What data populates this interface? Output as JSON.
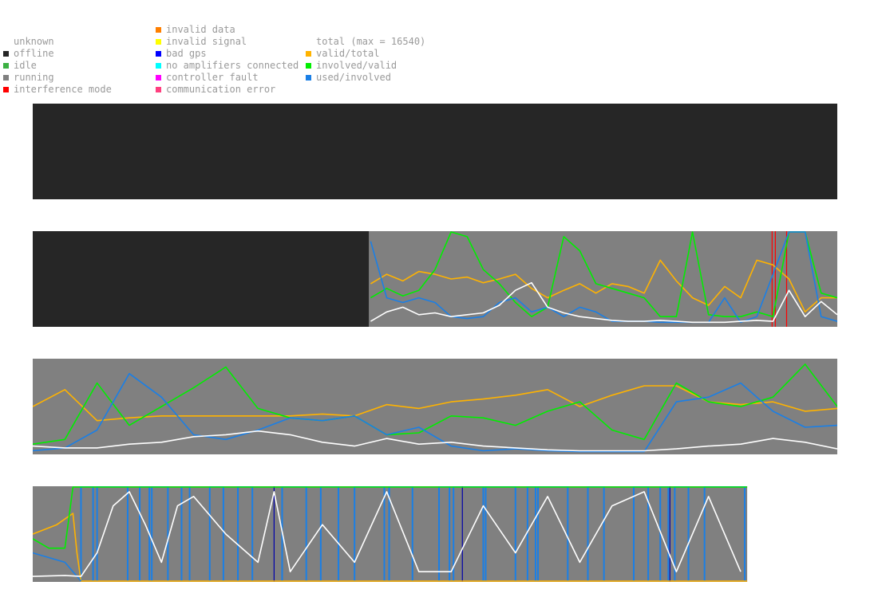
{
  "legend": {
    "col1": [
      {
        "label": "unknown",
        "color": null
      },
      {
        "label": "offline",
        "color": "#262626"
      },
      {
        "label": "idle",
        "color": "#3cb043"
      },
      {
        "label": "running",
        "color": "#808080"
      },
      {
        "label": "interference mode",
        "color": "#ff0000"
      }
    ],
    "col2": [
      {
        "label": "invalid data",
        "color": "#ff7f00"
      },
      {
        "label": "invalid signal",
        "color": "#ffff00"
      },
      {
        "label": "bad gps",
        "color": "#0000ff"
      },
      {
        "label": "no amplifiers connected",
        "color": "#00ffff"
      },
      {
        "label": "controller fault",
        "color": "#ff00ff"
      },
      {
        "label": "communication error",
        "color": "#ff3f7f"
      }
    ],
    "col3": [
      {
        "label": "total (max = 16540)",
        "color": null
      },
      {
        "label": "valid/total",
        "color": "#ffb300"
      },
      {
        "label": "involved/valid",
        "color": "#00ee00"
      },
      {
        "label": "used/involved",
        "color": "#1a7fe6"
      }
    ]
  },
  "colors": {
    "offline": "#262626",
    "running": "#808080",
    "total": "#ffffff",
    "valid_total": "#ffb300",
    "involved_valid": "#00ee00",
    "used_involved": "#1a7fe6",
    "interference": "#ff0000",
    "bad_gps": "#0000aa"
  },
  "chart_data": [
    {
      "type": "line",
      "title": "",
      "x_range": [
        0,
        1
      ],
      "ylim": [
        0,
        1
      ],
      "status_segments": [
        {
          "from": 0.0,
          "to": 1.0,
          "state": "offline"
        }
      ],
      "series": []
    },
    {
      "type": "line",
      "title": "",
      "x_range": [
        0,
        1
      ],
      "ylim": [
        0,
        1
      ],
      "status_segments": [
        {
          "from": 0.0,
          "to": 0.418,
          "state": "offline"
        },
        {
          "from": 0.418,
          "to": 1.0,
          "state": "running"
        }
      ],
      "markers": [
        {
          "x": 0.919,
          "state": "interference"
        },
        {
          "x": 0.923,
          "state": "interference"
        },
        {
          "x": 0.937,
          "state": "interference"
        }
      ],
      "series": [
        {
          "key": "total",
          "x": [
            0.42,
            0.44,
            0.46,
            0.48,
            0.5,
            0.52,
            0.54,
            0.56,
            0.58,
            0.6,
            0.62,
            0.64,
            0.66,
            0.68,
            0.7,
            0.72,
            0.74,
            0.76,
            0.78,
            0.8,
            0.82,
            0.84,
            0.86,
            0.88,
            0.9,
            0.92,
            0.94,
            0.96,
            0.98,
            1.0
          ],
          "values": [
            0.05,
            0.15,
            0.2,
            0.12,
            0.14,
            0.1,
            0.12,
            0.14,
            0.22,
            0.38,
            0.46,
            0.2,
            0.14,
            0.1,
            0.08,
            0.06,
            0.05,
            0.05,
            0.06,
            0.05,
            0.04,
            0.04,
            0.04,
            0.05,
            0.06,
            0.05,
            0.38,
            0.1,
            0.26,
            0.12
          ]
        },
        {
          "key": "valid_total",
          "x": [
            0.42,
            0.44,
            0.46,
            0.48,
            0.5,
            0.52,
            0.54,
            0.56,
            0.58,
            0.6,
            0.62,
            0.64,
            0.66,
            0.68,
            0.7,
            0.72,
            0.74,
            0.76,
            0.78,
            0.8,
            0.82,
            0.84,
            0.86,
            0.88,
            0.9,
            0.92,
            0.94,
            0.96,
            0.98,
            1.0
          ],
          "values": [
            0.45,
            0.55,
            0.48,
            0.58,
            0.55,
            0.5,
            0.52,
            0.46,
            0.5,
            0.55,
            0.4,
            0.3,
            0.38,
            0.45,
            0.35,
            0.45,
            0.42,
            0.35,
            0.7,
            0.48,
            0.3,
            0.22,
            0.42,
            0.3,
            0.7,
            0.65,
            0.5,
            0.15,
            0.3,
            0.3
          ]
        },
        {
          "key": "involved_valid",
          "x": [
            0.42,
            0.44,
            0.46,
            0.48,
            0.5,
            0.52,
            0.54,
            0.56,
            0.58,
            0.6,
            0.62,
            0.64,
            0.66,
            0.68,
            0.7,
            0.72,
            0.74,
            0.76,
            0.78,
            0.8,
            0.82,
            0.84,
            0.86,
            0.88,
            0.9,
            0.92,
            0.94,
            0.96,
            0.98,
            1.0
          ],
          "values": [
            0.3,
            0.4,
            0.32,
            0.38,
            0.6,
            1.0,
            0.95,
            0.6,
            0.45,
            0.25,
            0.1,
            0.2,
            0.95,
            0.8,
            0.45,
            0.4,
            0.35,
            0.3,
            0.1,
            0.1,
            1.0,
            0.12,
            0.1,
            0.1,
            0.15,
            0.1,
            1.0,
            1.0,
            0.35,
            0.3
          ]
        },
        {
          "key": "used_involved",
          "x": [
            0.42,
            0.44,
            0.46,
            0.48,
            0.5,
            0.52,
            0.54,
            0.56,
            0.58,
            0.6,
            0.62,
            0.64,
            0.66,
            0.68,
            0.7,
            0.72,
            0.74,
            0.76,
            0.78,
            0.8,
            0.82,
            0.84,
            0.86,
            0.88,
            0.9,
            0.92,
            0.94,
            0.96,
            0.98,
            1.0
          ],
          "values": [
            0.9,
            0.3,
            0.25,
            0.3,
            0.25,
            0.1,
            0.08,
            0.1,
            0.25,
            0.3,
            0.15,
            0.2,
            0.1,
            0.2,
            0.15,
            0.05,
            0.05,
            0.05,
            0.04,
            0.04,
            0.04,
            0.04,
            0.3,
            0.04,
            0.1,
            0.55,
            1.0,
            1.0,
            0.1,
            0.05
          ]
        }
      ]
    },
    {
      "type": "line",
      "title": "",
      "x_range": [
        0,
        1
      ],
      "ylim": [
        0,
        1
      ],
      "status_segments": [
        {
          "from": 0.0,
          "to": 1.0,
          "state": "running"
        }
      ],
      "series": [
        {
          "key": "total",
          "x": [
            0.0,
            0.04,
            0.08,
            0.12,
            0.16,
            0.2,
            0.24,
            0.28,
            0.32,
            0.36,
            0.4,
            0.44,
            0.48,
            0.52,
            0.56,
            0.6,
            0.64,
            0.68,
            0.72,
            0.76,
            0.8,
            0.84,
            0.88,
            0.92,
            0.96,
            1.0
          ],
          "values": [
            0.08,
            0.06,
            0.06,
            0.1,
            0.12,
            0.18,
            0.2,
            0.24,
            0.2,
            0.12,
            0.08,
            0.16,
            0.1,
            0.12,
            0.08,
            0.06,
            0.04,
            0.03,
            0.03,
            0.03,
            0.05,
            0.08,
            0.1,
            0.16,
            0.12,
            0.05
          ]
        },
        {
          "key": "valid_total",
          "x": [
            0.0,
            0.04,
            0.08,
            0.12,
            0.16,
            0.2,
            0.24,
            0.28,
            0.32,
            0.36,
            0.4,
            0.44,
            0.48,
            0.52,
            0.56,
            0.6,
            0.64,
            0.68,
            0.72,
            0.76,
            0.8,
            0.84,
            0.88,
            0.92,
            0.96,
            1.0
          ],
          "values": [
            0.5,
            0.68,
            0.35,
            0.38,
            0.4,
            0.4,
            0.4,
            0.4,
            0.4,
            0.42,
            0.4,
            0.52,
            0.48,
            0.55,
            0.58,
            0.62,
            0.68,
            0.5,
            0.62,
            0.72,
            0.72,
            0.55,
            0.52,
            0.55,
            0.45,
            0.48
          ]
        },
        {
          "key": "involved_valid",
          "x": [
            0.0,
            0.04,
            0.08,
            0.12,
            0.16,
            0.2,
            0.24,
            0.28,
            0.32,
            0.36,
            0.4,
            0.44,
            0.48,
            0.52,
            0.56,
            0.6,
            0.64,
            0.68,
            0.72,
            0.76,
            0.8,
            0.84,
            0.88,
            0.92,
            0.96,
            1.0
          ],
          "values": [
            0.1,
            0.15,
            0.75,
            0.3,
            0.5,
            0.7,
            0.92,
            0.48,
            0.38,
            0.35,
            0.4,
            0.2,
            0.22,
            0.4,
            0.38,
            0.3,
            0.45,
            0.55,
            0.25,
            0.15,
            0.75,
            0.55,
            0.5,
            0.6,
            0.95,
            0.5
          ]
        },
        {
          "key": "used_involved",
          "x": [
            0.0,
            0.04,
            0.08,
            0.12,
            0.16,
            0.2,
            0.24,
            0.28,
            0.32,
            0.36,
            0.4,
            0.44,
            0.48,
            0.52,
            0.56,
            0.6,
            0.64,
            0.68,
            0.72,
            0.76,
            0.8,
            0.84,
            0.88,
            0.92,
            0.96,
            1.0
          ],
          "values": [
            0.03,
            0.06,
            0.25,
            0.85,
            0.6,
            0.2,
            0.15,
            0.25,
            0.38,
            0.35,
            0.4,
            0.2,
            0.28,
            0.08,
            0.03,
            0.05,
            0.03,
            0.02,
            0.02,
            0.02,
            0.55,
            0.6,
            0.75,
            0.45,
            0.28,
            0.3
          ]
        }
      ]
    },
    {
      "type": "line",
      "title": "",
      "x_range": [
        0,
        1
      ],
      "ylim": [
        0,
        1
      ],
      "status_segments": [
        {
          "from": 0.0,
          "to": 0.888,
          "state": "running"
        }
      ],
      "markers": [
        {
          "x": 0.3,
          "state": "bad_gps"
        },
        {
          "x": 0.534,
          "state": "bad_gps"
        },
        {
          "x": 0.792,
          "state": "bad_gps"
        }
      ],
      "used_blocks": [
        [
          0.06,
          0.075
        ],
        [
          0.08,
          0.118
        ],
        [
          0.133,
          0.145
        ],
        [
          0.148,
          0.168
        ],
        [
          0.185,
          0.195
        ],
        [
          0.22,
          0.237
        ],
        [
          0.255,
          0.273
        ],
        [
          0.31,
          0.34
        ],
        [
          0.358,
          0.38
        ],
        [
          0.4,
          0.437
        ],
        [
          0.443,
          0.472
        ],
        [
          0.505,
          0.518
        ],
        [
          0.523,
          0.56
        ],
        [
          0.563,
          0.6
        ],
        [
          0.615,
          0.625
        ],
        [
          0.628,
          0.665
        ],
        [
          0.69,
          0.71
        ],
        [
          0.747,
          0.765
        ],
        [
          0.78,
          0.79
        ],
        [
          0.798,
          0.815
        ],
        [
          0.835,
          0.885
        ]
      ],
      "series": [
        {
          "key": "total",
          "x": [
            0.0,
            0.04,
            0.06,
            0.08,
            0.1,
            0.12,
            0.14,
            0.16,
            0.18,
            0.2,
            0.24,
            0.28,
            0.3,
            0.32,
            0.36,
            0.4,
            0.44,
            0.48,
            0.52,
            0.56,
            0.6,
            0.64,
            0.68,
            0.72,
            0.76,
            0.8,
            0.84,
            0.88
          ],
          "values": [
            0.05,
            0.06,
            0.05,
            0.3,
            0.8,
            0.95,
            0.6,
            0.2,
            0.8,
            0.9,
            0.5,
            0.2,
            0.95,
            0.1,
            0.6,
            0.2,
            0.95,
            0.1,
            0.1,
            0.8,
            0.3,
            0.9,
            0.2,
            0.8,
            0.95,
            0.1,
            0.9,
            0.1
          ]
        },
        {
          "key": "valid_total",
          "x": [
            0.0,
            0.03,
            0.05,
            0.055,
            0.06,
            0.888
          ],
          "values": [
            0.5,
            0.6,
            0.72,
            0.3,
            0.0,
            0.0
          ]
        },
        {
          "key": "involved_valid",
          "x": [
            0.0,
            0.02,
            0.04,
            0.05,
            0.058,
            0.888
          ],
          "values": [
            0.45,
            0.35,
            0.35,
            1.0,
            1.0,
            1.0
          ]
        },
        {
          "key": "used_involved",
          "x": [
            0.0,
            0.02,
            0.04,
            0.06
          ],
          "values": [
            0.3,
            0.25,
            0.2,
            0.0
          ]
        }
      ]
    }
  ]
}
